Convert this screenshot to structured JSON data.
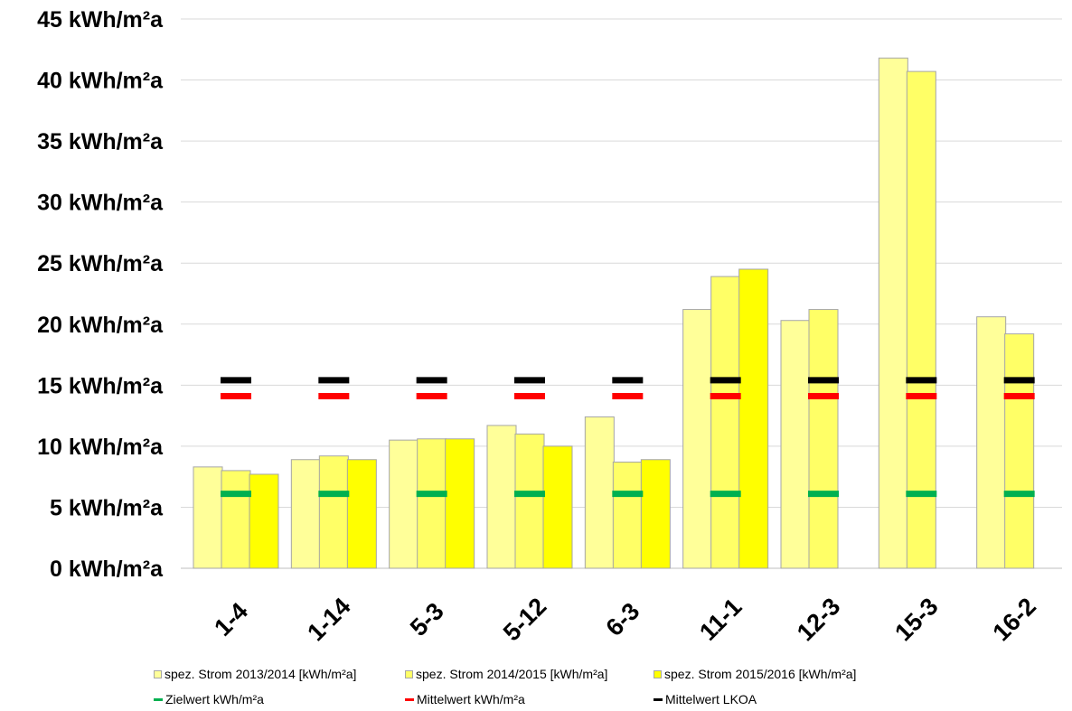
{
  "chart_data": {
    "type": "bar",
    "categories": [
      "1-4",
      "1-14",
      "5-3",
      "5-12",
      "6-3",
      "11-1",
      "12-3",
      "15-3",
      "16-2"
    ],
    "unit_suffix": " kWh/m²a",
    "ylim": [
      0,
      45
    ],
    "yticks": [
      0,
      5,
      10,
      15,
      20,
      25,
      30,
      35,
      40,
      45
    ],
    "ytick_labels": [
      "0 kWh/m²a",
      "5 kWh/m²a",
      "10 kWh/m²a",
      "15 kWh/m²a",
      "20 kWh/m²a",
      "25 kWh/m²a",
      "30 kWh/m²a",
      "35 kWh/m²a",
      "40 kWh/m²a",
      "45 kWh/m²a"
    ],
    "grid": true,
    "legend_position": "bottom",
    "series": [
      {
        "name": "spez. Strom 2013/2014 [kWh/m²a]",
        "color": "#ffff99",
        "values": [
          8.3,
          8.9,
          10.5,
          11.7,
          12.4,
          21.2,
          20.3,
          41.8,
          20.6
        ]
      },
      {
        "name": "spez. Strom 2014/2015 [kWh/m²a]",
        "color": "#ffff66",
        "values": [
          8.0,
          9.2,
          10.6,
          11.0,
          8.7,
          23.9,
          21.2,
          40.7,
          19.2
        ]
      },
      {
        "name": "spez. Strom 2015/2016 [kWh/m²a]",
        "color": "#ffff00",
        "values": [
          7.7,
          8.9,
          10.6,
          10.0,
          8.9,
          24.5,
          null,
          null,
          null
        ]
      }
    ],
    "reference_lines": [
      {
        "name": "Zielwert kWh/m²a",
        "color": "#00b050",
        "value": 6.1
      },
      {
        "name": "Mittelwert kWh/m²a",
        "color": "#ff0000",
        "value": 14.1
      },
      {
        "name": "Mittelwert LKOA",
        "color": "#000000",
        "value": 15.4
      }
    ]
  }
}
